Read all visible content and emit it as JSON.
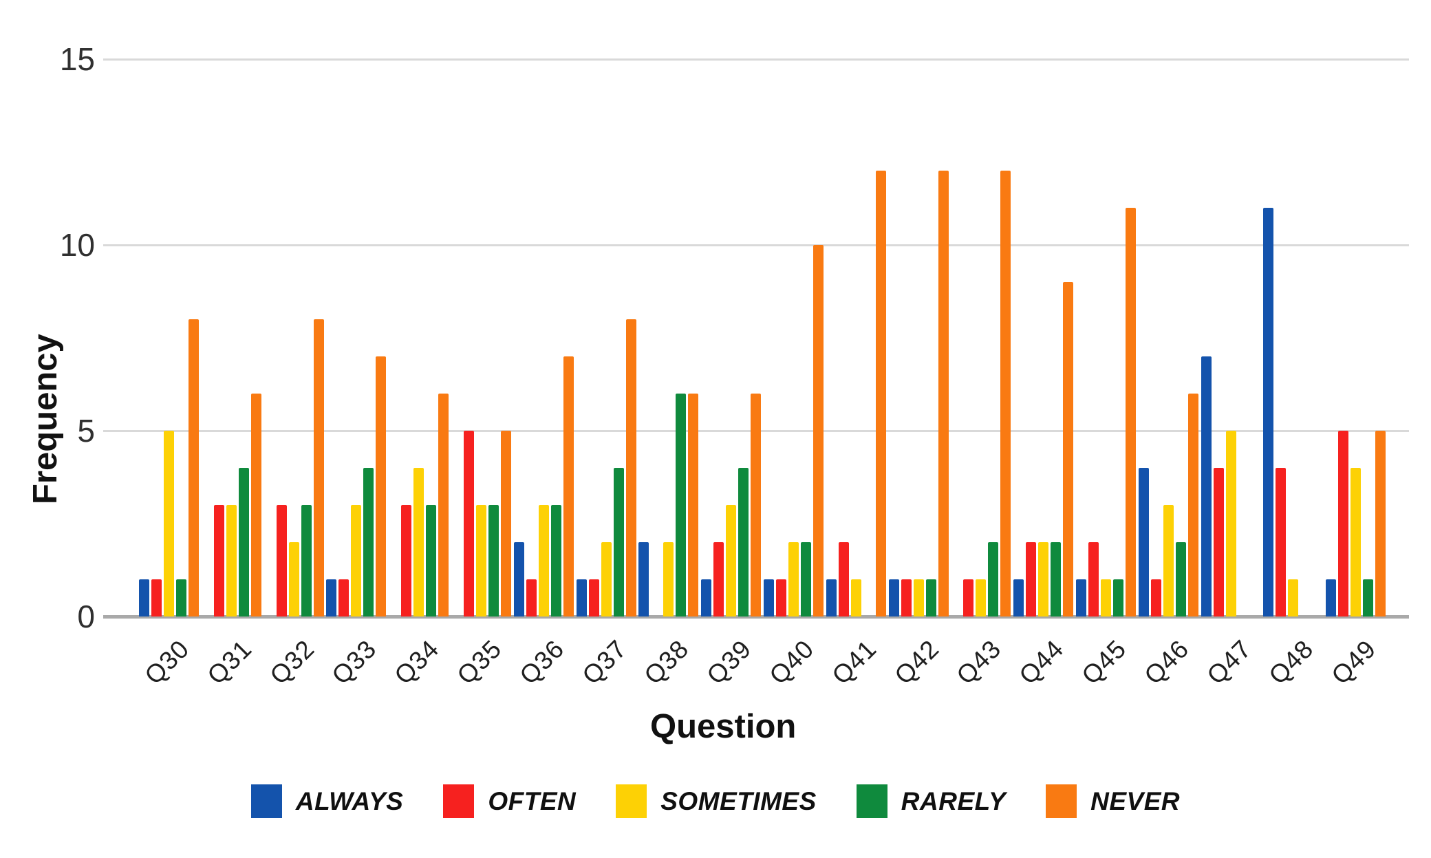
{
  "chart_data": {
    "type": "bar",
    "title": "",
    "xlabel": "Question",
    "ylabel": "Frequency",
    "categories": [
      "Q30",
      "Q31",
      "Q32",
      "Q33",
      "Q34",
      "Q35",
      "Q36",
      "Q37",
      "Q38",
      "Q39",
      "Q40",
      "Q41",
      "Q42",
      "Q43",
      "Q44",
      "Q45",
      "Q46",
      "Q47",
      "Q48",
      "Q49"
    ],
    "series": [
      {
        "name": "ALWAYS",
        "color": "#1453ac",
        "values": [
          1,
          0,
          0,
          1,
          0,
          0,
          2,
          1,
          2,
          1,
          1,
          1,
          1,
          0,
          1,
          1,
          4,
          7,
          11,
          1
        ]
      },
      {
        "name": "OFTEN",
        "color": "#f6211f",
        "values": [
          1,
          3,
          3,
          1,
          3,
          5,
          1,
          1,
          0,
          2,
          1,
          2,
          1,
          1,
          2,
          2,
          1,
          4,
          4,
          5
        ]
      },
      {
        "name": "SOMETIMES",
        "color": "#fdd105",
        "values": [
          5,
          3,
          2,
          3,
          4,
          3,
          3,
          2,
          2,
          3,
          2,
          1,
          1,
          1,
          2,
          1,
          3,
          5,
          1,
          4
        ]
      },
      {
        "name": "RARELY",
        "color": "#0f8a3d",
        "values": [
          1,
          4,
          3,
          4,
          3,
          3,
          3,
          4,
          6,
          4,
          2,
          0,
          1,
          2,
          2,
          1,
          2,
          0,
          0,
          1
        ]
      },
      {
        "name": "NEVER",
        "color": "#f97a12",
        "values": [
          8,
          6,
          8,
          7,
          6,
          5,
          7,
          8,
          6,
          6,
          10,
          12,
          12,
          12,
          9,
          11,
          6,
          0,
          0,
          5
        ]
      }
    ],
    "ylim": [
      0,
      15
    ],
    "yticks": [
      0,
      5,
      10,
      15
    ],
    "grid": "horizontal",
    "legend_position": "bottom"
  },
  "axes": {
    "x_title": "Question",
    "y_title": "Frequency"
  },
  "style_colors": {
    "gridline": "#d9d9d9",
    "axis_line": "#a9a9a9",
    "tick_text": "#303030",
    "axis_title_text": "#111111"
  }
}
